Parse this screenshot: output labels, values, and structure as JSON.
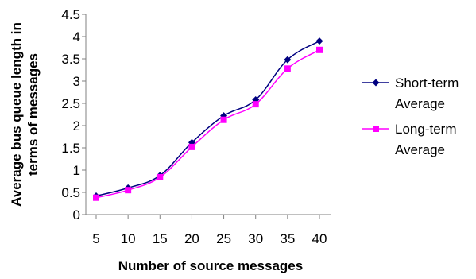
{
  "chart_data": {
    "type": "line",
    "title": "",
    "xlabel": "Number of source messages",
    "ylabel_lines": [
      "Average bus queue length in",
      "terms of messages"
    ],
    "x": [
      5,
      10,
      15,
      20,
      25,
      30,
      35,
      40
    ],
    "x_ticks": [
      "5",
      "10",
      "15",
      "20",
      "25",
      "30",
      "35",
      "40"
    ],
    "y_ticks": [
      "0",
      "0.5",
      "1",
      "1.5",
      "2",
      "2.5",
      "3",
      "3.5",
      "4",
      "4.5"
    ],
    "ylim": [
      0,
      4.5
    ],
    "grid": false,
    "legend_position": "right",
    "series": [
      {
        "name_lines": [
          "Short-term",
          "Average"
        ],
        "values": [
          0.42,
          0.6,
          0.88,
          1.62,
          2.22,
          2.58,
          3.48,
          3.9
        ],
        "color": "#000080",
        "marker": "diamond"
      },
      {
        "name_lines": [
          "Long-term",
          "Average"
        ],
        "values": [
          0.38,
          0.55,
          0.84,
          1.52,
          2.13,
          2.48,
          3.28,
          3.7
        ],
        "color": "#ff00ff",
        "marker": "square"
      }
    ]
  }
}
